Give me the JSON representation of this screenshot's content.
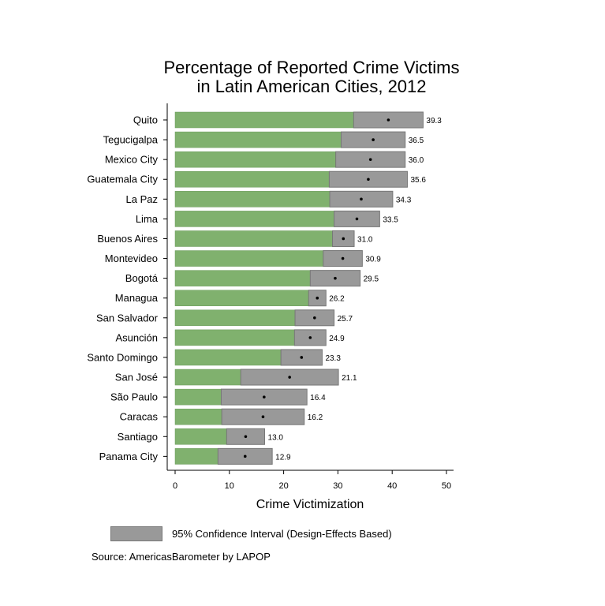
{
  "chart_data": {
    "type": "bar",
    "title": [
      "Percentage of Reported Crime Victims",
      "in Latin American Cities, 2012"
    ],
    "xlabel": "Crime Victimization",
    "xlim": [
      0,
      50
    ],
    "xticks": [
      0,
      10,
      20,
      30,
      40,
      50
    ],
    "grid": false,
    "categories": [
      "Quito",
      "Tegucigalpa",
      "Mexico City",
      "Guatemala City",
      "La Paz",
      "Lima",
      "Buenos Aires",
      "Montevideo",
      "Bogotá",
      "Managua",
      "San Salvador",
      "Asunción",
      "Santo Domingo",
      "San José",
      "São Paulo",
      "Caracas",
      "Santiago",
      "Panama City"
    ],
    "values": [
      39.3,
      36.5,
      36.0,
      35.6,
      34.3,
      33.5,
      31.0,
      30.9,
      29.5,
      26.2,
      25.7,
      24.9,
      23.3,
      21.1,
      16.4,
      16.2,
      13.0,
      12.9
    ],
    "value_labels": [
      "39.3",
      "36.5",
      "36.0",
      "35.6",
      "34.3",
      "33.5",
      "31.0",
      "30.9",
      "29.5",
      "26.2",
      "25.7",
      "24.9",
      "23.3",
      "21.1",
      "16.4",
      "16.2",
      "13.0",
      "12.9"
    ],
    "ci_lower": [
      32.9,
      30.6,
      29.6,
      28.4,
      28.5,
      29.3,
      29.0,
      27.3,
      24.9,
      24.6,
      22.1,
      22.0,
      19.5,
      12.1,
      8.5,
      8.6,
      9.5,
      7.9
    ],
    "ci_upper": [
      45.7,
      42.4,
      42.4,
      42.8,
      40.1,
      37.7,
      33.0,
      34.5,
      34.1,
      27.8,
      29.3,
      27.8,
      27.1,
      30.1,
      24.3,
      23.8,
      16.5,
      17.9
    ],
    "legend": {
      "label": "95% Confidence Interval (Design-Effects Based)",
      "position": "bottom"
    },
    "source": "Source: AmericasBarometer by LAPOP",
    "colors": {
      "bar": "#80b16e",
      "ci": "#999999",
      "ci_edge": "#777777",
      "point": "#000000"
    }
  }
}
